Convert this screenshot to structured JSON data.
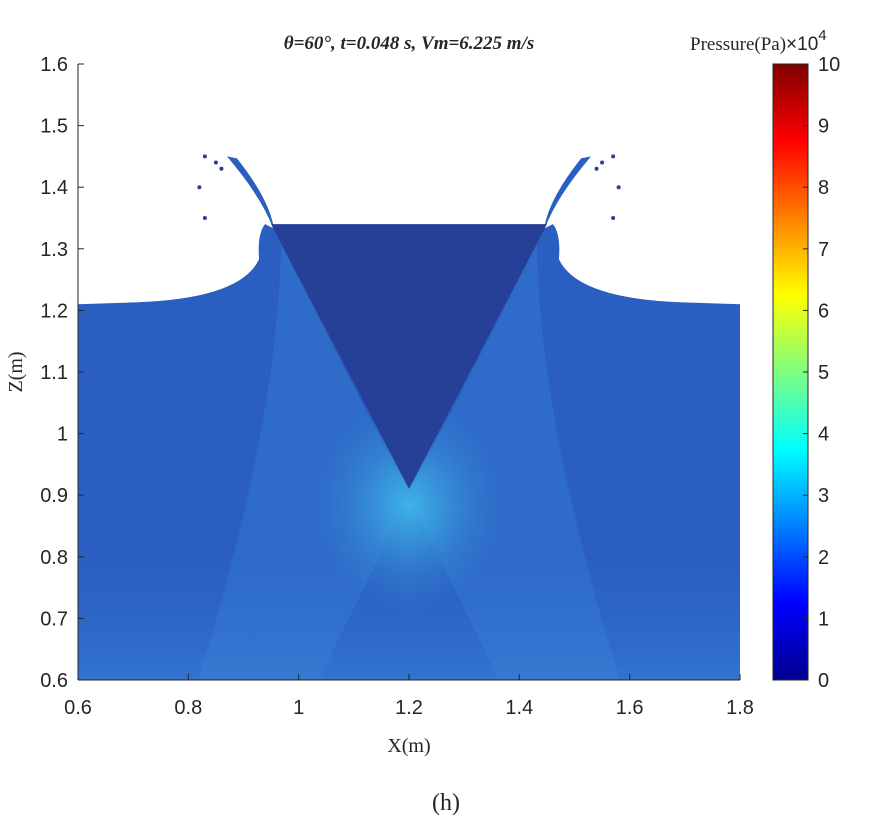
{
  "chart_data": {
    "type": "heatmap",
    "title": "θ=60°,  t=0.048 s,  Vm=6.225 m/s",
    "xlabel": "X(m)",
    "ylabel": "Z(m)",
    "xlim": [
      0.6,
      1.8
    ],
    "ylim": [
      0.6,
      1.6
    ],
    "x_ticks": [
      "0.6",
      "0.8",
      "1",
      "1.2",
      "1.4",
      "1.6",
      "1.8"
    ],
    "y_ticks": [
      "0.6",
      "0.7",
      "0.8",
      "0.9",
      "1",
      "1.1",
      "1.2",
      "1.3",
      "1.4",
      "1.5",
      "1.6"
    ],
    "colorbar": {
      "label": "Pressure(Pa)",
      "multiplier_text": "×",
      "multiplier_base": "10",
      "multiplier_exp": "4",
      "range": [
        0,
        10
      ],
      "ticks": [
        "0",
        "1",
        "2",
        "3",
        "4",
        "5",
        "6",
        "7",
        "8",
        "9",
        "10"
      ],
      "colormap": "jet"
    },
    "water_surface_z": 1.21,
    "wedge": {
      "apex": [
        1.2,
        0.91
      ],
      "top_z": 1.34,
      "top_left_x": 0.95,
      "top_right_x": 1.45
    },
    "pressure_peak": {
      "x": 1.2,
      "z": 0.9,
      "value": 3.0
    },
    "background_pressure": 1.4,
    "caption": "(h)"
  }
}
